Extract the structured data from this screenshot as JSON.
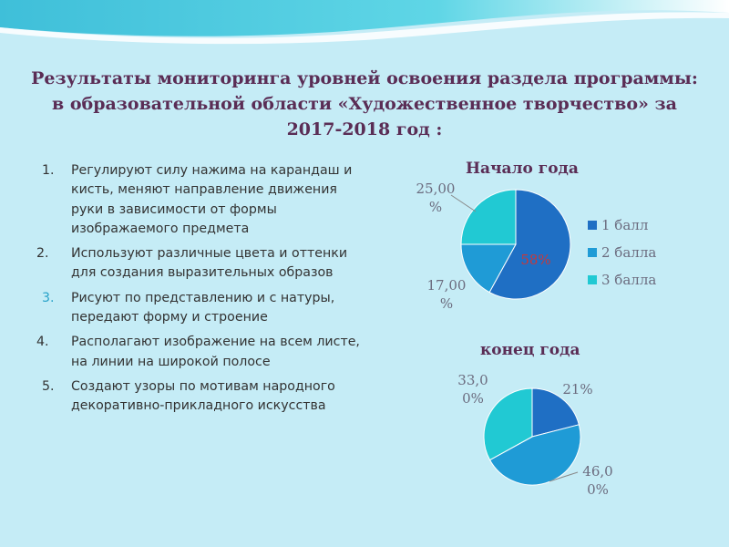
{
  "slide": {
    "title": "Результаты мониторинга уровней освоения раздела программы: в образовательной области «Художественное творчество» за 2017-2018 год :",
    "items": [
      {
        "num": "1.",
        "text": "Регулируют силу нажима на карандаш и кисть, меняют направление движения руки в зависимости от формы изображаемого предмета"
      },
      {
        "num": "2.",
        "text": "Используют различные цвета и оттенки для создания выразительных образов"
      },
      {
        "num": "3.",
        "text": "Рисуют по представлению и с натуры, передают форму и строение"
      },
      {
        "num": "4.",
        "text": "Располагают изображение на всем листе, на линии на широкой полосе"
      },
      {
        "num": "5.",
        "text": "Создают узоры по мотивам народного декоративно-прикладного искусства"
      }
    ]
  },
  "colors": {
    "title": "#5a2d55",
    "slice1": "#1f6fc4",
    "slice2": "#1f9bd6",
    "slice3": "#21c9d3",
    "label": "#6b6b7e",
    "label_inside": "#c8383a"
  },
  "chart_data": [
    {
      "type": "pie",
      "title": "Начало года",
      "categories": [
        "1 балл",
        "2 балла",
        "3 балла"
      ],
      "values": [
        58,
        17,
        25
      ],
      "data_labels": [
        "58%",
        "17,00 %",
        "25,00 %"
      ],
      "legend_placement": "right"
    },
    {
      "type": "pie",
      "title": "конец года",
      "categories": [
        "1 балл",
        "2 балла",
        "3 балла"
      ],
      "values": [
        21,
        46,
        33
      ],
      "data_labels": [
        "21%",
        "46,00%",
        "33,00%"
      ]
    }
  ]
}
